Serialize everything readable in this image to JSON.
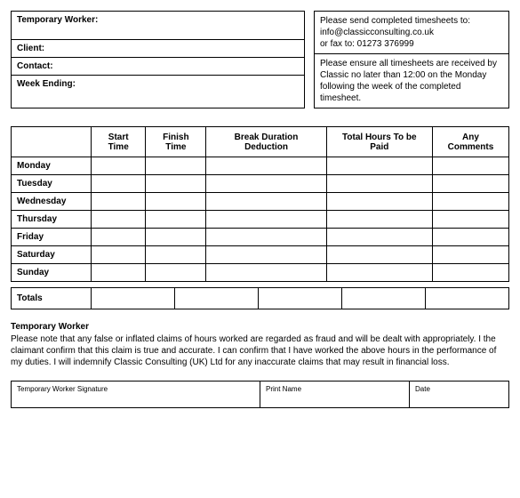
{
  "header": {
    "fields": [
      {
        "label": "Temporary Worker:"
      },
      {
        "label": "Client:"
      },
      {
        "label": "Contact:"
      },
      {
        "label": "Week Ending:"
      }
    ],
    "instructions_top": "Please send completed timesheets to: info@classicconsulting.co.uk\nor fax to: 01273 376999",
    "instructions_bottom": "Please ensure all timesheets are received by     Classic no later than 12:00 on the Monday following the week of the completed timesheet."
  },
  "timesheet": {
    "columns": [
      "",
      "Start Time",
      "Finish Time",
      "Break Duration Deduction",
      "Total Hours To be Paid",
      "Any Comments"
    ],
    "days": [
      "Monday",
      "Tuesday",
      "Wednesday",
      "Thursday",
      "Friday",
      "Saturday",
      "Sunday"
    ],
    "totals_label": "Totals"
  },
  "declaration": {
    "title": "Temporary Worker",
    "text": "Please note that any false or inflated claims of hours worked are regarded as fraud and will be dealt with appropriately. I the claimant confirm that this claim is true and accurate. I can confirm that I have worked the above hours in the performance of my duties. I will indemnify Classic Consulting (UK) Ltd for any inaccurate claims that may result in financial loss."
  },
  "signature": {
    "col1": "Temporary Worker Signature",
    "col2": "Print Name",
    "col3": "Date"
  }
}
